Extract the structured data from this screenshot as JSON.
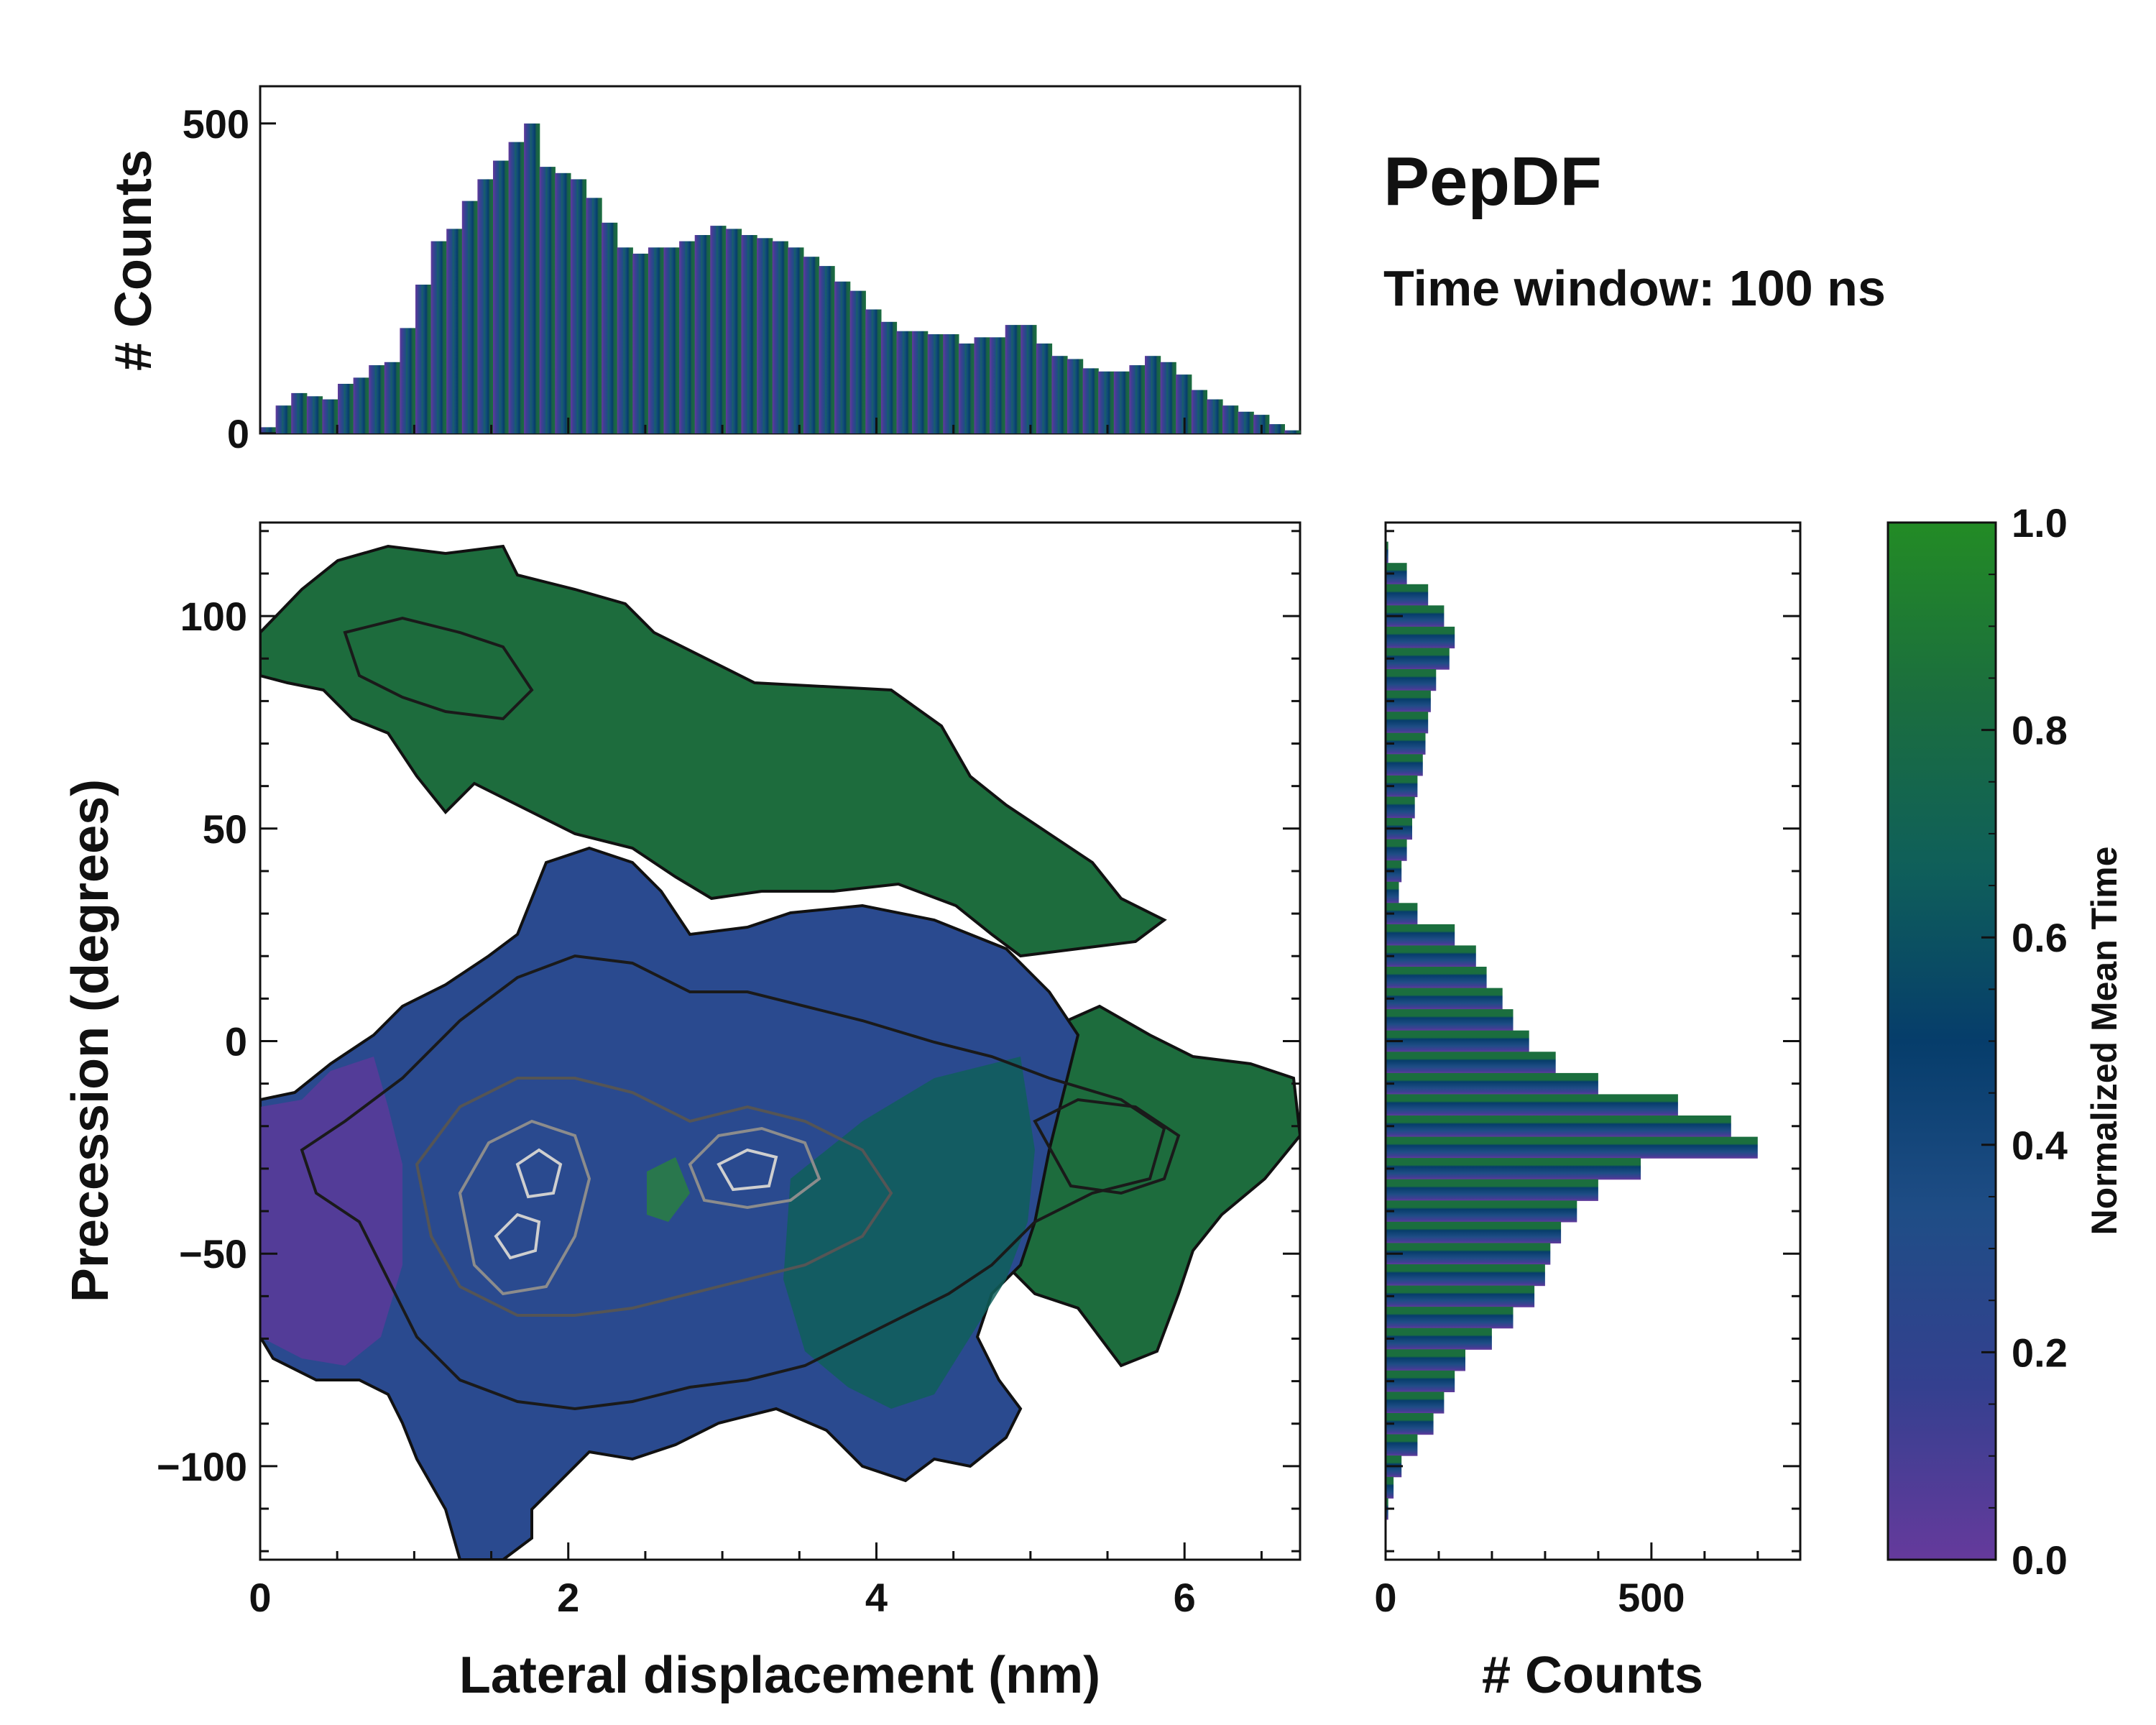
{
  "chart_data": {
    "type": "heatmap",
    "title": "PepDF",
    "subtitle": "Time window: 100 ns",
    "xlabel": "Lateral displacement (nm)",
    "ylabel": "Precession (degrees)",
    "xlim": [
      0,
      6.75
    ],
    "ylim": [
      -122,
      122
    ],
    "xticks": [
      0,
      2,
      4,
      6
    ],
    "xtick_labels": [
      "0",
      "2",
      "4",
      "6"
    ],
    "yticks": [
      -100,
      -50,
      0,
      50,
      100
    ],
    "ytick_labels": [
      "−100",
      "−50",
      "0",
      "50",
      "100"
    ],
    "colorbar": {
      "label": "Normalized Mean Time",
      "range": [
        0,
        1
      ],
      "ticks": [
        0.0,
        0.2,
        0.4,
        0.6,
        0.8,
        1.0
      ],
      "tick_labels": [
        "0.0",
        "0.2",
        "0.4",
        "0.6",
        "0.8",
        "1.0"
      ],
      "colors": [
        "#653a9c",
        "#34408f",
        "#1f4d86",
        "#063d6b",
        "#0f5f5a",
        "#1b6e3e",
        "#238b25"
      ]
    },
    "top_histogram": {
      "ylabel": "# Counts",
      "ylim": [
        0,
        560
      ],
      "yticks": [
        0,
        500
      ],
      "ytick_labels": [
        "0",
        "500"
      ],
      "x": [
        0.05,
        0.15,
        0.25,
        0.35,
        0.45,
        0.55,
        0.65,
        0.75,
        0.85,
        0.95,
        1.05,
        1.15,
        1.25,
        1.35,
        1.45,
        1.55,
        1.65,
        1.75,
        1.85,
        1.95,
        2.05,
        2.15,
        2.25,
        2.35,
        2.45,
        2.55,
        2.65,
        2.75,
        2.85,
        2.95,
        3.05,
        3.15,
        3.25,
        3.35,
        3.45,
        3.55,
        3.65,
        3.75,
        3.85,
        3.95,
        4.05,
        4.15,
        4.25,
        4.35,
        4.45,
        4.55,
        4.65,
        4.75,
        4.85,
        4.95,
        5.05,
        5.15,
        5.25,
        5.35,
        5.45,
        5.55,
        5.65,
        5.75,
        5.85,
        5.95,
        6.05,
        6.15,
        6.25,
        6.35,
        6.45,
        6.55,
        6.65
      ],
      "counts": [
        10,
        45,
        65,
        60,
        55,
        80,
        90,
        110,
        115,
        170,
        240,
        310,
        330,
        375,
        410,
        440,
        470,
        500,
        430,
        420,
        410,
        380,
        340,
        300,
        290,
        300,
        300,
        310,
        320,
        335,
        330,
        320,
        315,
        310,
        300,
        285,
        270,
        245,
        230,
        200,
        180,
        165,
        165,
        160,
        160,
        145,
        155,
        155,
        175,
        175,
        145,
        125,
        120,
        105,
        100,
        100,
        110,
        125,
        115,
        95,
        70,
        55,
        45,
        35,
        30,
        15,
        5
      ]
    },
    "right_histogram": {
      "xlabel": "# Counts",
      "xlim": [
        0,
        780
      ],
      "xticks": [
        0,
        500
      ],
      "xtick_labels": [
        "0",
        "500"
      ],
      "y": [
        115,
        110,
        105,
        100,
        95,
        90,
        85,
        80,
        75,
        70,
        65,
        60,
        55,
        50,
        45,
        40,
        35,
        30,
        25,
        20,
        15,
        10,
        5,
        0,
        -5,
        -10,
        -15,
        -20,
        -25,
        -30,
        -35,
        -40,
        -45,
        -50,
        -55,
        -60,
        -65,
        -70,
        -75,
        -80,
        -85,
        -90,
        -95,
        -100,
        -105,
        -110,
        -115
      ],
      "counts": [
        5,
        40,
        80,
        110,
        130,
        120,
        95,
        85,
        80,
        75,
        70,
        60,
        55,
        50,
        40,
        30,
        25,
        60,
        130,
        170,
        190,
        220,
        240,
        270,
        320,
        400,
        550,
        650,
        700,
        480,
        400,
        360,
        330,
        310,
        300,
        280,
        240,
        200,
        150,
        130,
        110,
        90,
        60,
        30,
        15,
        5,
        2
      ]
    }
  }
}
